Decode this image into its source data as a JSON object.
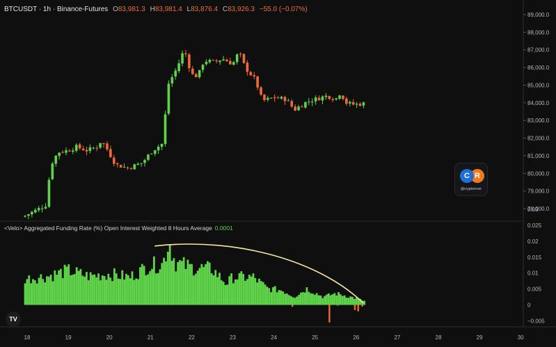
{
  "header": {
    "symbol": "BTCUSDT · 1h · Binance-Futures",
    "o_label": "O",
    "o_value": "83,981.3",
    "h_label": "H",
    "h_value": "83,981.4",
    "l_label": "L",
    "l_value": "83,876.4",
    "c_label": "C",
    "c_value": "83,926.3",
    "change": "−55.0 (−0.07%)"
  },
  "indicator": {
    "title": "<Velo> Aggregated Funding Rate (%) Open Interest Weighted 8 Hours Average",
    "value": "0.0001"
  },
  "watermark": {
    "initials_1": "C",
    "initials_2": "R",
    "handle": "@cryptorover"
  },
  "tv_logo": "TV",
  "colors": {
    "up": "#5fd34a",
    "down": "#ef6a3a",
    "bg": "#0f0f0f",
    "curve": "#f6e7a1"
  },
  "chart_data": [
    {
      "type": "candlestick",
      "title": "BTCUSDT · 1h · Binance-Futures",
      "x_ticks": [
        "18",
        "19",
        "20",
        "21",
        "22",
        "23",
        "24",
        "25",
        "26",
        "27",
        "28",
        "29",
        "30"
      ],
      "y_ticks": [
        "78,000.0",
        "79,000.0",
        "80,000.0",
        "81,000.0",
        "82,000.0",
        "83,000.0",
        "84,000.0",
        "85,000.0",
        "86,000.0",
        "87,000.0",
        "88,000.0",
        "89,000.0"
      ],
      "ylim": [
        77400,
        89200
      ],
      "anchors": [
        [
          17.95,
          77600
        ],
        [
          18.25,
          77950
        ],
        [
          18.45,
          78200
        ],
        [
          18.58,
          80500
        ],
        [
          18.75,
          81200
        ],
        [
          19.0,
          81300
        ],
        [
          19.2,
          81500
        ],
        [
          19.45,
          81300
        ],
        [
          19.7,
          81500
        ],
        [
          19.8,
          81850
        ],
        [
          19.95,
          81350
        ],
        [
          20.15,
          80500
        ],
        [
          20.45,
          80300
        ],
        [
          20.8,
          80600
        ],
        [
          21.05,
          81300
        ],
        [
          21.3,
          81700
        ],
        [
          21.42,
          85000
        ],
        [
          21.65,
          86000
        ],
        [
          21.82,
          87050
        ],
        [
          22.0,
          85600
        ],
        [
          22.15,
          85500
        ],
        [
          22.3,
          86400
        ],
        [
          22.55,
          86300
        ],
        [
          22.75,
          86500
        ],
        [
          23.0,
          86200
        ],
        [
          23.15,
          86900
        ],
        [
          23.3,
          86000
        ],
        [
          23.55,
          85300
        ],
        [
          23.72,
          84100
        ],
        [
          24.0,
          84300
        ],
        [
          24.3,
          84200
        ],
        [
          24.5,
          83600
        ],
        [
          24.75,
          84000
        ],
        [
          25.0,
          84200
        ],
        [
          25.3,
          84400
        ],
        [
          25.5,
          84200
        ],
        [
          25.62,
          84600
        ],
        [
          25.75,
          84000
        ],
        [
          25.95,
          83900
        ],
        [
          26.18,
          83950
        ]
      ],
      "candle_count": 100
    },
    {
      "type": "bar",
      "title": "<Velo> Aggregated Funding Rate (%) Open Interest Weighted 8 Hours Average",
      "y_ticks": [
        "0.03",
        "0.025",
        "0.02",
        "0.015",
        "0.01",
        "0.005",
        "0",
        "−0.005"
      ],
      "ylim": [
        -0.0075,
        0.031
      ],
      "xlim": [
        17.95,
        26.2
      ],
      "bar_count": 172,
      "anchors": [
        [
          17.95,
          0.008
        ],
        [
          18.5,
          0.0088
        ],
        [
          19.0,
          0.0105
        ],
        [
          19.5,
          0.0088
        ],
        [
          20.0,
          0.0095
        ],
        [
          20.5,
          0.0085
        ],
        [
          20.95,
          0.012
        ],
        [
          21.3,
          0.0125
        ],
        [
          21.45,
          0.0195
        ],
        [
          21.6,
          0.013
        ],
        [
          22.0,
          0.0115
        ],
        [
          22.5,
          0.011
        ],
        [
          22.85,
          0.0065
        ],
        [
          23.0,
          0.0085
        ],
        [
          23.5,
          0.0085
        ],
        [
          23.85,
          0.005
        ],
        [
          24.2,
          0.0045
        ],
        [
          24.5,
          0.0025
        ],
        [
          24.8,
          0.005
        ],
        [
          25.2,
          0.0025
        ],
        [
          25.5,
          0.0035
        ],
        [
          25.7,
          0.003
        ],
        [
          26.0,
          0.002
        ],
        [
          26.2,
          0.0012
        ]
      ],
      "negative_bars": [
        [
          24.45,
          -0.0006
        ],
        [
          25.35,
          -0.0055
        ],
        [
          25.55,
          -0.0002
        ],
        [
          25.97,
          -0.0016
        ],
        [
          26.05,
          -0.002
        ],
        [
          26.15,
          -0.0005
        ]
      ],
      "trend_curve": true
    }
  ]
}
